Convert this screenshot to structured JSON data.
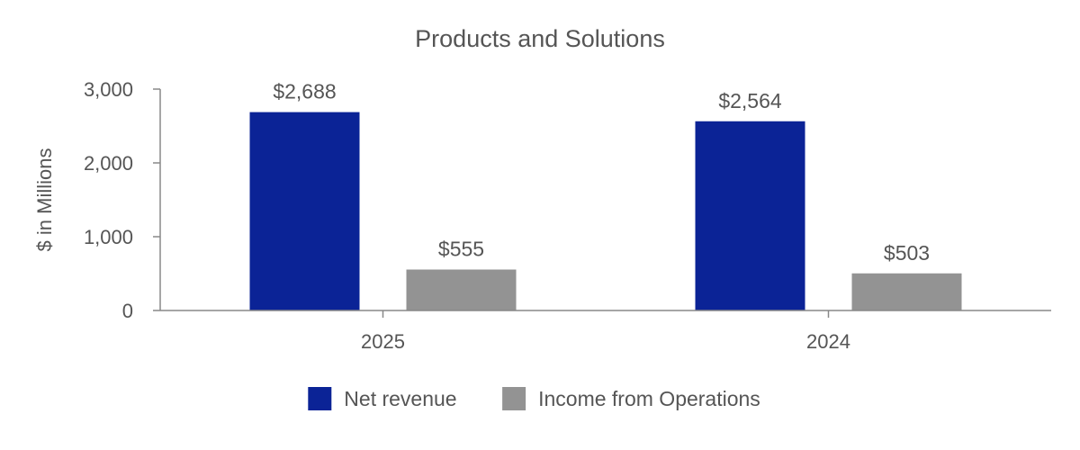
{
  "chart_data": {
    "type": "bar",
    "title": "Products and Solutions",
    "ylabel": "$ in Millions",
    "xlabel": "",
    "categories": [
      "2025",
      "2024"
    ],
    "ylim": [
      0,
      3000
    ],
    "yticks": [
      0,
      1000,
      2000,
      3000
    ],
    "ytick_labels": [
      "0",
      "1,000",
      "2,000",
      "3,000"
    ],
    "grid": false,
    "legend_position": "bottom",
    "series": [
      {
        "name": "Net revenue",
        "values": [
          2688,
          2564
        ],
        "labels": [
          "$2,688",
          "$2,564"
        ],
        "color": "#0b2396"
      },
      {
        "name": "Income from Operations",
        "values": [
          555,
          503
        ],
        "labels": [
          "$555",
          "$503"
        ],
        "color": "#939393"
      }
    ]
  }
}
